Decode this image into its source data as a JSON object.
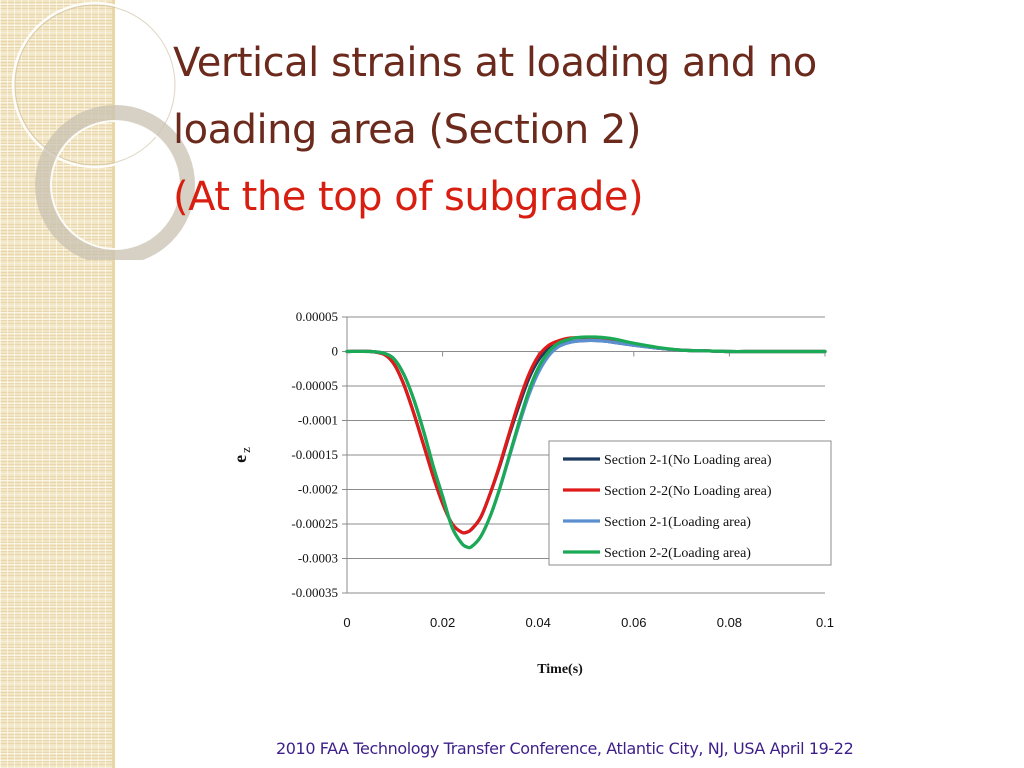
{
  "slide": {
    "title_line1": "Vertical strains at loading and no",
    "title_line2": "loading area   (Section 2)",
    "title_line3": "(At the top of subgrade)",
    "footer": "2010 FAA Technology Transfer Conference, Atlantic City, NJ, USA April 19-22"
  },
  "chart_data": {
    "type": "line",
    "title": "",
    "xlabel": "Time(s)",
    "ylabel_main": "e",
    "ylabel_sub": "z",
    "xlim": [
      0,
      0.1
    ],
    "ylim": [
      -0.00035,
      5e-05
    ],
    "x_ticks": [
      "0",
      "0.02",
      "0.04",
      "0.06",
      "0.08",
      "0.1"
    ],
    "y_ticks": [
      "0.00005",
      "0",
      "-0.00005",
      "-0.0001",
      "-0.00015",
      "-0.0002",
      "-0.00025",
      "-0.0003",
      "-0.00035"
    ],
    "grid": "horizontal",
    "legend_position": "lower-right",
    "x": [
      0,
      0.005,
      0.008,
      0.01,
      0.012,
      0.014,
      0.016,
      0.018,
      0.02,
      0.022,
      0.024,
      0.025,
      0.026,
      0.028,
      0.03,
      0.032,
      0.034,
      0.036,
      0.038,
      0.04,
      0.042,
      0.044,
      0.046,
      0.048,
      0.05,
      0.052,
      0.054,
      0.056,
      0.058,
      0.06,
      0.065,
      0.07,
      0.075,
      0.08,
      0.085,
      0.09,
      0.095,
      0.1
    ],
    "series": [
      {
        "name": "Section 2-1(No Loading area)",
        "color": "#1f3a5f",
        "values": [
          0,
          0,
          -5e-06,
          -2e-05,
          -5e-05,
          -9e-05,
          -0.000135,
          -0.00018,
          -0.00022,
          -0.00025,
          -0.000262,
          -0.000262,
          -0.000258,
          -0.00024,
          -0.000205,
          -0.000165,
          -0.00012,
          -7.8e-05,
          -4e-05,
          -1.3e-05,
          3e-06,
          1e-05,
          1.3e-05,
          1.5e-05,
          1.6e-05,
          1.6e-05,
          1.5e-05,
          1.3e-05,
          1.1e-05,
          9e-06,
          5e-06,
          2e-06,
          1e-06,
          0,
          0,
          0,
          0,
          0
        ]
      },
      {
        "name": "Section 2-2(No Loading area)",
        "color": "#e01a1a",
        "values": [
          0,
          0,
          -5e-06,
          -2e-05,
          -5e-05,
          -9e-05,
          -0.000135,
          -0.00018,
          -0.00022,
          -0.00025,
          -0.000262,
          -0.000262,
          -0.000258,
          -0.00024,
          -0.000205,
          -0.000163,
          -0.000117,
          -7.2e-05,
          -3.4e-05,
          -7e-06,
          8e-06,
          1.5e-05,
          1.9e-05,
          2e-05,
          2e-05,
          2e-05,
          1.9e-05,
          1.7e-05,
          1.4e-05,
          1.1e-05,
          5e-06,
          2e-06,
          1e-06,
          0,
          0,
          0,
          0,
          0
        ]
      },
      {
        "name": "Section 2-1(Loading area)",
        "color": "#5b8fd0",
        "values": [
          0,
          0,
          -3e-06,
          -1.2e-05,
          -3.5e-05,
          -7e-05,
          -0.000115,
          -0.000165,
          -0.00021,
          -0.000255,
          -0.000278,
          -0.000283,
          -0.000283,
          -0.000268,
          -0.000238,
          -0.000198,
          -0.000152,
          -0.000106,
          -6.4e-05,
          -3.1e-05,
          -8e-06,
          6e-06,
          1.2e-05,
          1.5e-05,
          1.6e-05,
          1.6e-05,
          1.5e-05,
          1.3e-05,
          1.1e-05,
          9e-06,
          5e-06,
          2e-06,
          1e-06,
          0,
          0,
          0,
          0,
          0
        ]
      },
      {
        "name": "Section 2-2(Loading area)",
        "color": "#1aaa55",
        "values": [
          0,
          0,
          -3e-06,
          -1.2e-05,
          -3.5e-05,
          -7e-05,
          -0.000115,
          -0.000165,
          -0.00021,
          -0.000255,
          -0.000278,
          -0.000283,
          -0.000283,
          -0.000268,
          -0.000238,
          -0.000197,
          -0.00015,
          -0.000102,
          -5.8e-05,
          -2.4e-05,
          -2e-06,
          1.1e-05,
          1.7e-05,
          2e-05,
          2.1e-05,
          2.1e-05,
          2e-05,
          1.8e-05,
          1.5e-05,
          1.2e-05,
          6e-06,
          2e-06,
          1e-06,
          0,
          0,
          0,
          0,
          0
        ]
      }
    ]
  }
}
